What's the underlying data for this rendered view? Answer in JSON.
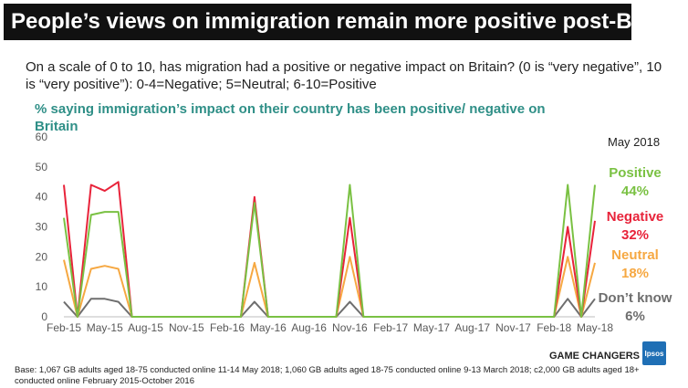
{
  "header": {
    "title": "People’s views on immigration remain more positive post-Brexit",
    "question": "On a scale of 0 to 10, has migration had a positive or negative impact on Britain? (0 is “very negative”, 10 is “very positive”): 0-4=Negative; 5=Neutral; 6-10=Positive"
  },
  "side_panel": {
    "date": "May 2018",
    "items": [
      {
        "label": "Positive",
        "value": "44%",
        "color": "#7ac143"
      },
      {
        "label": "Negative",
        "value": "32%",
        "color": "#e8233a"
      },
      {
        "label": "Neutral",
        "value": "18%",
        "color": "#f6a842"
      },
      {
        "label": "Don’t know",
        "value": "6%",
        "color": "#6e6e6e"
      }
    ]
  },
  "footer": {
    "footnote": "Base: 1,067 GB adults aged 18-75 conducted online 11-14 May 2018; 1,060 GB adults aged 18-75 conducted online 9-13 March 2018; c2,000 GB adults aged 18+ conducted online February 2015-October 2016",
    "brand": "GAME CHANGERS",
    "logo": "Ipsos"
  },
  "chart_data": {
    "type": "line",
    "title": "% saying immigration’s impact on their country has been positive/ negative on Britain",
    "xlabel": "",
    "ylabel": "",
    "x": [
      "Feb-15",
      "Mar-15",
      "Apr-15",
      "May-15",
      "Jun-15",
      "Jul-15",
      "Aug-15",
      "Sep-15",
      "Oct-15",
      "Nov-15",
      "Dec-15",
      "Jan-16",
      "Feb-16",
      "Mar-16",
      "Apr-16",
      "May-16",
      "Jun-16",
      "Jul-16",
      "Aug-16",
      "Sep-16",
      "Oct-16",
      "Nov-16",
      "Dec-16",
      "Jan-17",
      "Feb-17",
      "Mar-17",
      "Apr-17",
      "May-17",
      "Jun-17",
      "Jul-17",
      "Aug-17",
      "Sep-17",
      "Oct-17",
      "Nov-17",
      "Dec-17",
      "Jan-18",
      "Feb-18",
      "Mar-18",
      "Apr-18",
      "May-18"
    ],
    "x_tick_labels": [
      "Feb-15",
      "May-15",
      "Aug-15",
      "Nov-15",
      "Feb-16",
      "May-16",
      "Aug-16",
      "Nov-16",
      "Feb-17",
      "May-17",
      "Aug-17",
      "Nov-17",
      "Feb-18",
      "May-18"
    ],
    "ylim": [
      0,
      60
    ],
    "y_ticks": [
      0,
      10,
      20,
      30,
      40,
      50,
      60
    ],
    "grid": false,
    "series": [
      {
        "name": "Negative",
        "color": "#e8233a",
        "values": [
          44,
          0,
          44,
          42,
          45,
          0,
          0,
          0,
          0,
          0,
          0,
          0,
          0,
          0,
          40,
          0,
          0,
          0,
          0,
          0,
          0,
          33,
          0,
          0,
          0,
          0,
          0,
          0,
          0,
          0,
          0,
          0,
          0,
          0,
          0,
          0,
          0,
          30,
          0,
          32
        ]
      },
      {
        "name": "Positive",
        "color": "#7ac143",
        "values": [
          33,
          0,
          34,
          35,
          35,
          0,
          0,
          0,
          0,
          0,
          0,
          0,
          0,
          0,
          38,
          0,
          0,
          0,
          0,
          0,
          0,
          44,
          0,
          0,
          0,
          0,
          0,
          0,
          0,
          0,
          0,
          0,
          0,
          0,
          0,
          0,
          0,
          44,
          0,
          44
        ]
      },
      {
        "name": "Neutral",
        "color": "#f6a842",
        "values": [
          19,
          0,
          16,
          17,
          16,
          0,
          0,
          0,
          0,
          0,
          0,
          0,
          0,
          0,
          18,
          0,
          0,
          0,
          0,
          0,
          0,
          20,
          0,
          0,
          0,
          0,
          0,
          0,
          0,
          0,
          0,
          0,
          0,
          0,
          0,
          0,
          0,
          20,
          0,
          18
        ]
      },
      {
        "name": "Don’t know",
        "color": "#6e6e6e",
        "values": [
          5,
          0,
          6,
          6,
          5,
          0,
          0,
          0,
          0,
          0,
          0,
          0,
          0,
          0,
          5,
          0,
          0,
          0,
          0,
          0,
          0,
          5,
          0,
          0,
          0,
          0,
          0,
          0,
          0,
          0,
          0,
          0,
          0,
          0,
          0,
          0,
          0,
          6,
          0,
          6
        ]
      }
    ]
  }
}
